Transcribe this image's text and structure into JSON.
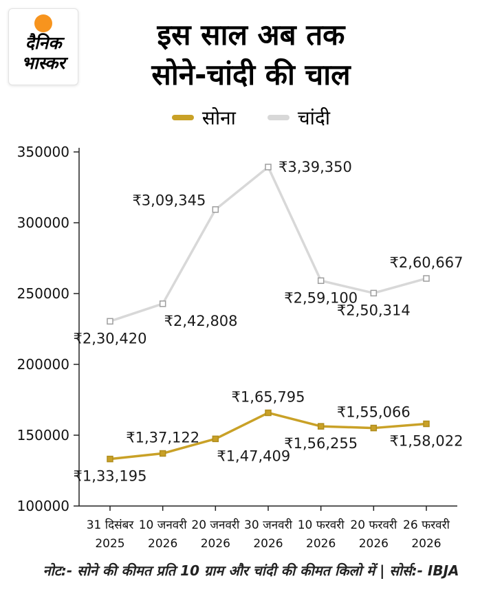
{
  "header": {
    "title_line1": "इस साल अब तक",
    "title_line2": "सोने-चांदी की चाल",
    "logo": {
      "line1": "दैनिक",
      "line2": "भास्कर",
      "sun_color": "#f7941e"
    }
  },
  "chart_data": {
    "type": "line",
    "categories": [
      "31 दिसंबर 2025",
      "10 जनवरी 2026",
      "20 जनवरी 2026",
      "30 जनवरी 2026",
      "10 फरवरी 2026",
      "20 फरवरी 2026",
      "26 फरवरी 2026"
    ],
    "x_labels_line1": [
      "31 दिसंबर",
      "10 जनवरी",
      "20 जनवरी",
      "30 जनवरी",
      "10 फरवरी",
      "20 फरवरी",
      "26 फरवरी"
    ],
    "x_labels_line2": [
      "2025",
      "2026",
      "2026",
      "2026",
      "2026",
      "2026",
      "2026"
    ],
    "ylim": [
      100000,
      350000
    ],
    "yticks": [
      100000,
      150000,
      200000,
      250000,
      300000,
      350000
    ],
    "grid": false,
    "legend_position": "top",
    "series": [
      {
        "key": "gold",
        "name": "सोना",
        "color": "#c9a127",
        "marker_fill": "#c9a127",
        "marker_stroke": "#b08d1e",
        "values": [
          133195,
          137122,
          147409,
          165795,
          156255,
          155066,
          158022
        ],
        "labels": [
          "₹1,33,195",
          "₹1,37,122",
          "₹1,47,409",
          "₹1,65,795",
          "₹1,56,255",
          "₹1,55,066",
          "₹1,58,022"
        ],
        "label_positions": [
          "below",
          "above",
          "below-right",
          "above",
          "below",
          "above",
          "below"
        ]
      },
      {
        "key": "silver",
        "name": "चांदी",
        "color": "#d8d8d8",
        "marker_fill": "#ffffff",
        "marker_stroke": "#9e9e9e",
        "values": [
          230420,
          242808,
          309345,
          339350,
          259100,
          250314,
          260667
        ],
        "labels": [
          "₹2,30,420",
          "₹2,42,808",
          "₹3,09,345",
          "₹3,39,350",
          "₹2,59,100",
          "₹2,50,314",
          "₹2,60,667"
        ],
        "label_positions": [
          "below",
          "below-right",
          "left",
          "right",
          "below",
          "below",
          "above"
        ]
      }
    ]
  },
  "footer": {
    "note": "नोट:- सोने की कीमत प्रति 10 ग्राम और चांदी की कीमत किलो में | सोर्स:- IBJA"
  }
}
